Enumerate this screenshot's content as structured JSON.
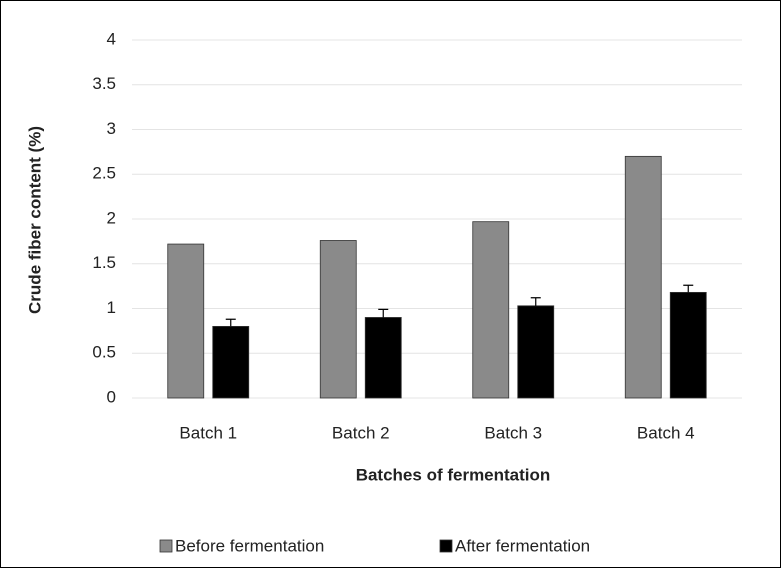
{
  "chart_data": {
    "type": "bar",
    "xlabel": "Batches of fermentation",
    "ylabel": "Crude fiber content (%)",
    "categories": [
      "Batch 1",
      "Batch 2",
      "Batch 3",
      "Batch 4"
    ],
    "series": [
      {
        "name": "Before fermentation",
        "color": "#8a8a8a",
        "values": [
          1.72,
          1.76,
          1.97,
          2.7
        ]
      },
      {
        "name": "After fermentation",
        "color": "#000000",
        "values": [
          0.8,
          0.9,
          1.03,
          1.18
        ],
        "errors": [
          0.08,
          0.09,
          0.09,
          0.08
        ]
      }
    ],
    "ylim": [
      0,
      4
    ],
    "yticks": [
      0,
      0.5,
      1,
      1.5,
      2,
      2.5,
      3,
      3.5,
      4
    ],
    "grid": true,
    "legend": "bottom"
  }
}
